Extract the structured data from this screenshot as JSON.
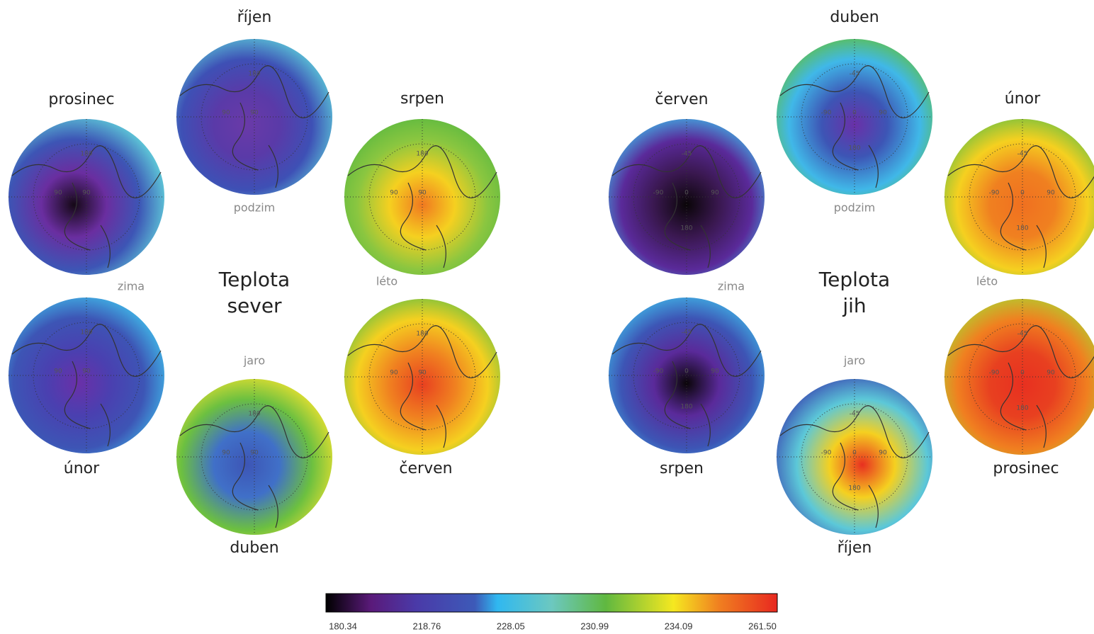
{
  "north": {
    "title": [
      "Teplota",
      "sever"
    ],
    "seasons": {
      "autumn": "podzim",
      "winter": "zima",
      "summer": "léto",
      "spring": "jaro"
    },
    "grid_labels": [
      "180",
      "90",
      "90"
    ],
    "maps": [
      {
        "label": "prosinec"
      },
      {
        "label": "říjen"
      },
      {
        "label": "srpen"
      },
      {
        "label": "únor"
      },
      {
        "label": "duben"
      },
      {
        "label": "červen"
      }
    ]
  },
  "south": {
    "title": [
      "Teplota",
      "jih"
    ],
    "seasons": {
      "autumn": "podzim",
      "winter": "zima",
      "summer": "léto",
      "spring": "jaro"
    },
    "grid_labels": [
      "-45",
      "0",
      "-90",
      "90",
      "180"
    ],
    "maps": [
      {
        "label": "červen"
      },
      {
        "label": "duben"
      },
      {
        "label": "únor"
      },
      {
        "label": "srpen"
      },
      {
        "label": "říjen"
      },
      {
        "label": "prosinec"
      }
    ]
  },
  "colorbar": {
    "ticks": [
      "180.34",
      "218.76",
      "228.05",
      "230.99",
      "234.09",
      "261.50"
    ]
  }
}
